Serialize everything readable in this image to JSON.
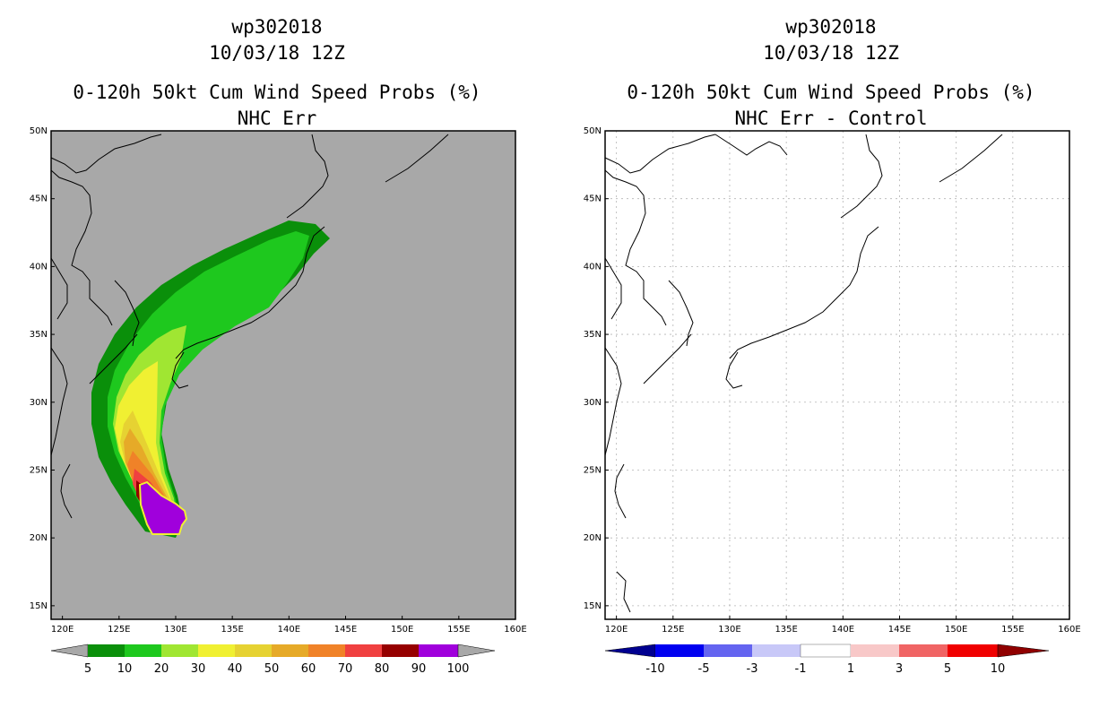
{
  "colors": {
    "land_bg": "#a8a8a8",
    "prob_5": "#0a8f0a",
    "prob_10": "#1ec81e",
    "prob_20": "#a0e632",
    "prob_30": "#f0f032",
    "prob_40": "#e6d232",
    "prob_50": "#e6aa28",
    "prob_60": "#f08228",
    "prob_70": "#f04040",
    "prob_80": "#960000",
    "prob_90": "#8c0096",
    "prob_100": "#a000dc",
    "diff_neg10": "#000090",
    "diff_neg5": "#0000f0",
    "diff_neg3": "#6464f0",
    "diff_neg1": "#c8c8f8",
    "diff_zero": "#ffffff",
    "diff_pos1": "#f8c8c8",
    "diff_pos3": "#f06464",
    "diff_pos5": "#f00000",
    "diff_pos10": "#900000"
  },
  "left_panel": {
    "storm_id": "wp302018",
    "datetime": "10/03/18 12Z",
    "product": "0-120h 50kt Cum Wind Speed Probs (%)",
    "subtitle": "NHC Err",
    "colorbar_labels": [
      "5",
      "10",
      "20",
      "30",
      "40",
      "50",
      "60",
      "70",
      "80",
      "90",
      "100"
    ]
  },
  "right_panel": {
    "storm_id": "wp302018",
    "datetime": "10/03/18 12Z",
    "product": "0-120h 50kt Cum Wind Speed Probs (%)",
    "subtitle": "NHC Err - Control",
    "colorbar_labels": [
      "-10",
      "-5",
      "-3",
      "-1",
      "1",
      "3",
      "5",
      "10"
    ]
  },
  "map": {
    "lon_ticks": [
      "120E",
      "125E",
      "130E",
      "135E",
      "140E",
      "145E",
      "150E",
      "155E",
      "160E"
    ],
    "lat_ticks": [
      "50N",
      "45N",
      "40N",
      "35N",
      "30N",
      "25N",
      "20N",
      "15N"
    ],
    "lon_range": [
      119,
      160
    ],
    "lat_range": [
      14,
      50
    ]
  }
}
